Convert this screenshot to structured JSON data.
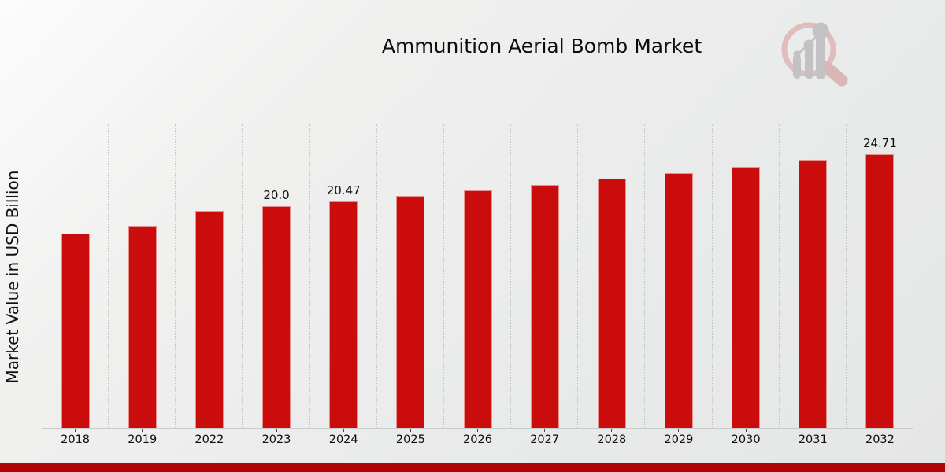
{
  "page": {
    "footer_accent_color": "#b20606",
    "watermark_icon": "magnifier-bar-chart-logo"
  },
  "chart_data": {
    "type": "bar",
    "title": "Ammunition Aerial Bomb Market",
    "ylabel": "Market Value in USD Billion",
    "xlabel": "",
    "categories": [
      "2018",
      "2019",
      "2022",
      "2023",
      "2024",
      "2025",
      "2026",
      "2027",
      "2028",
      "2029",
      "2030",
      "2031",
      "2032"
    ],
    "values": [
      17.56,
      18.22,
      19.62,
      20.0,
      20.47,
      20.96,
      21.46,
      21.97,
      22.49,
      23.03,
      23.58,
      24.14,
      24.71
    ],
    "bar_labels": {
      "2023": "20.0",
      "2024": "20.47",
      "2032": "24.71"
    },
    "bar_color": "#ca0c0c",
    "ylim": [
      0,
      27.4
    ],
    "grid": "vertical-dotted",
    "legend_position": "none"
  }
}
